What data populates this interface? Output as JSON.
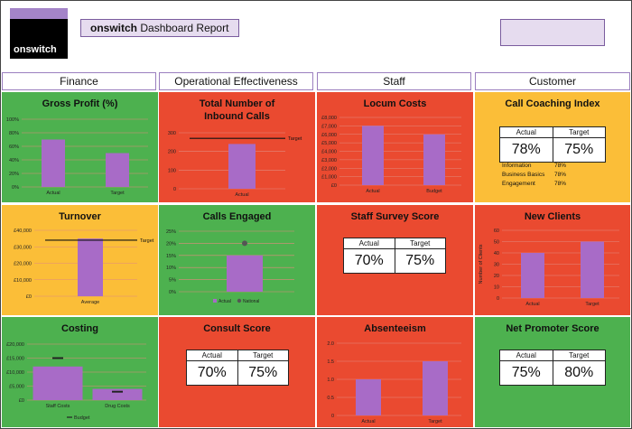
{
  "header": {
    "logo_text": "onswitch",
    "report_brand": "onswitch",
    "report_title": "Dashboard Report"
  },
  "columns": [
    "Finance",
    "Operational Effectiveness",
    "Staff",
    "Customer"
  ],
  "colors": {
    "green": "#4db14f",
    "red": "#ea4a30",
    "yellow": "#fbbe38",
    "bar": "#a86bc7",
    "grid": "#e28a7e"
  },
  "tiles": {
    "gross_profit": {
      "title": "Gross Profit (%)"
    },
    "inbound_calls": {
      "title": "Total Number of Inbound Calls"
    },
    "locum_costs": {
      "title": "Locum Costs"
    },
    "call_coaching": {
      "title": "Call Coaching Index",
      "actual_label": "Actual",
      "target_label": "Target",
      "actual": "78%",
      "target": "75%",
      "breakdown": [
        {
          "label": "Information",
          "value": "78%"
        },
        {
          "label": "Business Basics",
          "value": "78%"
        },
        {
          "label": "Engagement",
          "value": "78%"
        }
      ]
    },
    "turnover": {
      "title": "Turnover"
    },
    "calls_engaged": {
      "title": "Calls Engaged"
    },
    "staff_survey": {
      "title": "Staff Survey Score",
      "actual_label": "Actual",
      "target_label": "Target",
      "actual": "70%",
      "target": "75%"
    },
    "new_clients": {
      "title": "New Clients"
    },
    "costing": {
      "title": "Costing"
    },
    "consult_score": {
      "title": "Consult Score",
      "actual_label": "Actual",
      "target_label": "Target",
      "actual": "70%",
      "target": "75%"
    },
    "absenteeism": {
      "title": "Absenteeism"
    },
    "nps": {
      "title": "Net Promoter Score",
      "actual_label": "Actual",
      "target_label": "Target",
      "actual": "75%",
      "target": "80%"
    }
  },
  "chart_data": [
    {
      "id": "gross_profit",
      "type": "bar",
      "categories": [
        "Actual",
        "Target"
      ],
      "values": [
        70,
        50
      ],
      "ylim": [
        0,
        100
      ],
      "yticks": [
        "0%",
        "20%",
        "40%",
        "60%",
        "80%",
        "100%"
      ]
    },
    {
      "id": "inbound_calls",
      "type": "bar",
      "categories": [
        "Actual"
      ],
      "values": [
        240
      ],
      "ylim": [
        0,
        300
      ],
      "yticks": [
        "0",
        "100",
        "200",
        "300"
      ],
      "target": 270,
      "target_label": "Target"
    },
    {
      "id": "locum_costs",
      "type": "bar",
      "categories": [
        "Actual",
        "Budget"
      ],
      "values": [
        7000,
        6000
      ],
      "ylim": [
        0,
        8000
      ],
      "yticks": [
        "£0",
        "£1,000",
        "£2,000",
        "£3,000",
        "£4,000",
        "£5,000",
        "£6,000",
        "£7,000",
        "£8,000"
      ]
    },
    {
      "id": "turnover",
      "type": "bar",
      "categories": [
        "Average"
      ],
      "values": [
        35000
      ],
      "ylim": [
        0,
        40000
      ],
      "yticks": [
        "£0",
        "£10,000",
        "£20,000",
        "£30,000",
        "£40,000"
      ],
      "target": 34000,
      "target_label": "Target"
    },
    {
      "id": "calls_engaged",
      "type": "bar",
      "categories": [
        ""
      ],
      "values": [
        15
      ],
      "ylim": [
        0,
        25
      ],
      "yticks": [
        "0%",
        "5%",
        "10%",
        "15%",
        "20%",
        "25%"
      ],
      "marker": 20,
      "legend": [
        "Actual",
        "National"
      ]
    },
    {
      "id": "new_clients",
      "type": "bar",
      "categories": [
        "Actual",
        "Target"
      ],
      "values": [
        40,
        50
      ],
      "ylim": [
        0,
        60
      ],
      "yticks": [
        "0",
        "10",
        "20",
        "30",
        "40",
        "50",
        "60"
      ],
      "ylabel": "Number of Clients"
    },
    {
      "id": "costing",
      "type": "bar",
      "categories": [
        "Staff Costs",
        "Drug Costs"
      ],
      "values": [
        12000,
        4000
      ],
      "ylim": [
        0,
        20000
      ],
      "yticks": [
        "£0",
        "£5,000",
        "£10,000",
        "£15,000",
        "£20,000"
      ],
      "budget": [
        15000,
        3000
      ],
      "legend": [
        "Budget"
      ]
    },
    {
      "id": "absenteeism",
      "type": "bar",
      "categories": [
        "Actual",
        "Target"
      ],
      "values": [
        1.0,
        1.5
      ],
      "ylim": [
        0,
        2
      ],
      "yticks": [
        "0",
        "0.5",
        "1.0",
        "1.5",
        "2.0"
      ]
    }
  ]
}
